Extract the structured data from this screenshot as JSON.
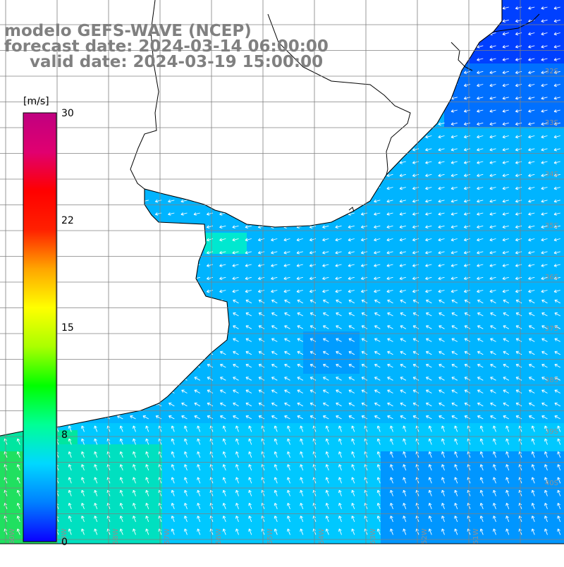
{
  "header": {
    "model_line": "modelo GEFS-WAVE (NCEP)",
    "forecast_line": "forecast date: 2024-03-14 06:00:00",
    "valid_line": "valid date: 2024-03-19 15:00:00"
  },
  "colorbar": {
    "unit": "[m/s]",
    "ticks": [
      "30",
      "22",
      "15",
      "8",
      "0"
    ],
    "tick_values": [
      30,
      22,
      15,
      8,
      0
    ],
    "min": 0,
    "max": 30,
    "stops": [
      "#0a00ff",
      "#0080ff",
      "#00d8ff",
      "#00ff96",
      "#00ff00",
      "#aaff00",
      "#ffff00",
      "#ffa500",
      "#ff2000",
      "#ff0000",
      "#e00070",
      "#c00080"
    ]
  },
  "map": {
    "lat_labels": [
      "32S",
      "33S",
      "34S",
      "35S",
      "36S",
      "37S",
      "38S",
      "39S",
      "40S"
    ],
    "lon_labels": [
      "60W",
      "59W",
      "58W",
      "57W",
      "56W",
      "55W",
      "54W",
      "53W",
      "52W",
      "51W"
    ],
    "land_color": "#ffffff",
    "coast_color": "#000000",
    "grid_color": "#808080",
    "arrow_color": "#ffffff"
  }
}
